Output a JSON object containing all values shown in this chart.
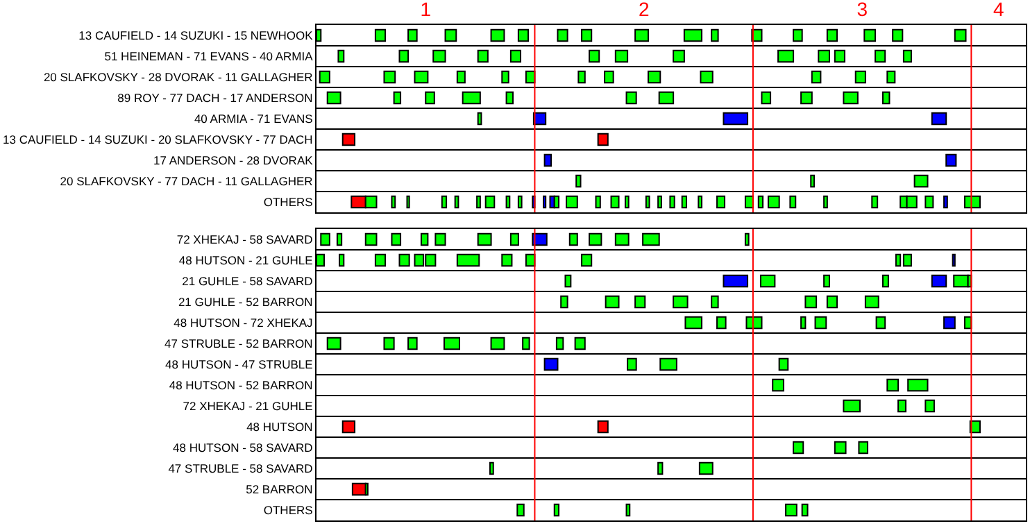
{
  "chart_data": [
    {
      "type": "bar",
      "orientation": "horizontal",
      "xlim": [
        0.5,
        3.75
      ],
      "xticks": [
        1,
        2,
        3,
        {
          "value": 3.625,
          "label": "4"
        }
      ],
      "grid": "y",
      "ref_lines": [
        {
          "axis": "x",
          "value": 1.5,
          "color": "#ff0000"
        },
        {
          "axis": "x",
          "value": 2.5,
          "color": "#ff0000"
        },
        {
          "axis": "x",
          "value": 3.5,
          "color": "#ff0000"
        }
      ],
      "categories": [
        "13 CAUFIELD - 14 SUZUKI - 15 NEWHOOK",
        "51 HEINEMAN - 71 EVANS - 40 ARMIA",
        "20 SLAFKOVSKY - 28 DVORAK - 11 GALLAGHER",
        "89 ROY - 77 DACH - 17 ANDERSON",
        "40 ARMIA - 71 EVANS",
        "13 CAUFIELD - 14 SUZUKI - 20 SLAFKOVSKY - 77 DACH",
        "17 ANDERSON - 28 DVORAK",
        "20 SLAFKOVSKY - 77 DACH - 11 GALLAGHER",
        "OTHERS"
      ],
      "series": [
        {
          "colors": [
            "#00ff00",
            "#00ff00",
            "#00ff00",
            "#00ff00",
            "#00ff00",
            "#ff0000",
            "#0000ff",
            "#00ff00",
            "#ff0000"
          ],
          "base": [
            0.5,
            0.6,
            0.515,
            0.55,
            1.24,
            0.62,
            1.545,
            1.69,
            0.66
          ],
          "values": [
            0.02,
            0.025,
            0.045,
            0.06,
            0.015,
            0.055,
            0.03,
            0.02,
            0.065
          ]
        },
        {
          "colors": [
            "#00ff00",
            "#00ff00",
            "#00ff00",
            "#00ff00",
            "#0000ff",
            "#ff0000",
            "#0000ff",
            "#00ff00",
            "#00ff00"
          ],
          "base": [
            0.77,
            0.88,
            0.81,
            0.855,
            1.495,
            1.79,
            3.385,
            2.765,
            0.725
          ],
          "values": [
            0.045,
            0.04,
            0.05,
            0.03,
            0.055,
            0.045,
            0.045,
            0.015,
            0.05
          ]
        },
        {
          "colors": [
            "#00ff00",
            "#00ff00",
            "#00ff00",
            "#00ff00",
            "#0000ff",
            null,
            null,
            "#00ff00",
            "#00ff00"
          ],
          "base": [
            0.92,
            1.035,
            0.95,
            1.0,
            2.365,
            null,
            null,
            3.24,
            0.845
          ],
          "values": [
            0.04,
            0.055,
            0.06,
            0.04,
            0.11,
            null,
            null,
            0.06,
            0.015
          ]
        },
        {
          "colors": [
            "#00ff00",
            "#00ff00",
            "#00ff00",
            "#00ff00",
            "#0000ff",
            null,
            null,
            null,
            "#00ff00"
          ],
          "base": [
            1.09,
            1.24,
            1.145,
            1.17,
            3.32,
            null,
            null,
            null,
            0.915
          ],
          "values": [
            0.05,
            0.045,
            0.035,
            0.08,
            0.065,
            null,
            null,
            null,
            0.01
          ]
        },
        {
          "color": "#00ff00",
          "base": [
            1.3,
            1.39,
            1.35,
            1.37,
            null,
            null,
            null,
            null,
            1.075
          ],
          "values": [
            0.06,
            0.045,
            0.03,
            0.03,
            null,
            null,
            null,
            null,
            0.02
          ]
        },
        {
          "color": "#00ff00",
          "base": [
            1.425,
            1.75,
            1.46,
            1.92,
            null,
            null,
            null,
            null,
            1.135
          ],
          "values": [
            0.045,
            0.045,
            0.04,
            0.045,
            null,
            null,
            null,
            null,
            0.015
          ]
        },
        {
          "color": "#00ff00",
          "base": [
            1.605,
            1.87,
            1.7,
            2.07,
            null,
            null,
            null,
            null,
            1.235
          ],
          "values": [
            0.045,
            0.055,
            0.03,
            0.065,
            null,
            null,
            null,
            null,
            0.015
          ]
        },
        {
          "color": "#00ff00",
          "base": [
            1.715,
            2.135,
            1.82,
            2.54,
            null,
            null,
            null,
            null,
            1.275
          ],
          "values": [
            0.045,
            0.05,
            0.04,
            0.04,
            null,
            null,
            null,
            null,
            0.04
          ]
        },
        {
          "color": "#00ff00",
          "base": [
            1.96,
            2.615,
            2.02,
            2.72,
            null,
            null,
            null,
            null,
            1.37
          ],
          "values": [
            0.06,
            0.07,
            0.055,
            0.05,
            null,
            null,
            null,
            null,
            0.015
          ]
        },
        {
          "color": "#00ff00",
          "base": [
            2.185,
            2.8,
            2.26,
            2.915,
            null,
            null,
            null,
            null,
            1.425
          ],
          "values": [
            0.08,
            0.05,
            0.055,
            0.065,
            null,
            null,
            null,
            null,
            0.015
          ]
        },
        {
          "colors": [
            "#00ff00",
            "#00ff00",
            "#00ff00",
            "#00ff00",
            null,
            null,
            null,
            null,
            "#0000ff"
          ],
          "base": [
            2.31,
            2.875,
            2.77,
            3.095,
            null,
            null,
            null,
            null,
            1.49
          ],
          "values": [
            0.03,
            0.045,
            0.04,
            0.03,
            null,
            null,
            null,
            null,
            0.01
          ]
        },
        {
          "colors": [
            "#00ff00",
            "#00ff00",
            "#00ff00",
            null,
            null,
            null,
            null,
            null,
            "#0000ff"
          ],
          "base": [
            2.495,
            3.06,
            2.97,
            null,
            null,
            null,
            null,
            null,
            1.54
          ],
          "values": [
            0.045,
            0.045,
            0.045,
            null,
            null,
            null,
            null,
            null,
            0.01
          ]
        },
        {
          "colors": [
            "#00ff00",
            "#00ff00",
            "#00ff00",
            null,
            null,
            null,
            null,
            null,
            "#0000ff"
          ],
          "base": [
            2.685,
            3.19,
            3.115,
            null,
            null,
            null,
            null,
            null,
            1.57
          ],
          "values": [
            0.04,
            0.035,
            0.035,
            null,
            null,
            null,
            null,
            null,
            0.02
          ]
        },
        {
          "color": "#00ff00",
          "base": [
            2.84,
            null,
            null,
            null,
            null,
            null,
            null,
            null,
            1.59
          ],
          "values": [
            0.045,
            null,
            null,
            null,
            null,
            null,
            null,
            null,
            0.02
          ]
        },
        {
          "color": "#00ff00",
          "base": [
            3.01,
            null,
            null,
            null,
            null,
            null,
            null,
            null,
            1.645
          ],
          "values": [
            0.05,
            null,
            null,
            null,
            null,
            null,
            null,
            null,
            0.05
          ]
        },
        {
          "color": "#00ff00",
          "base": [
            3.14,
            null,
            null,
            null,
            null,
            null,
            null,
            null,
            1.78
          ],
          "values": [
            0.045,
            null,
            null,
            null,
            null,
            null,
            null,
            null,
            0.02
          ]
        },
        {
          "color": "#00ff00",
          "base": [
            3.425,
            null,
            null,
            null,
            null,
            null,
            null,
            null,
            1.85
          ],
          "values": [
            0.05,
            null,
            null,
            null,
            null,
            null,
            null,
            null,
            0.035
          ]
        },
        {
          "color": "#00ff00",
          "base": [
            null,
            null,
            null,
            null,
            null,
            null,
            null,
            null,
            1.915
          ],
          "values": [
            null,
            null,
            null,
            null,
            null,
            null,
            null,
            null,
            0.015
          ]
        },
        {
          "color": "#00ff00",
          "base": [
            null,
            null,
            null,
            null,
            null,
            null,
            null,
            null,
            2.01
          ],
          "values": [
            null,
            null,
            null,
            null,
            null,
            null,
            null,
            null,
            0.015
          ]
        },
        {
          "color": "#00ff00",
          "base": [
            null,
            null,
            null,
            null,
            null,
            null,
            null,
            null,
            2.065
          ],
          "values": [
            null,
            null,
            null,
            null,
            null,
            null,
            null,
            null,
            0.015
          ]
        },
        {
          "color": "#00ff00",
          "base": [
            null,
            null,
            null,
            null,
            null,
            null,
            null,
            null,
            2.12
          ],
          "values": [
            null,
            null,
            null,
            null,
            null,
            null,
            null,
            null,
            0.02
          ]
        },
        {
          "color": "#00ff00",
          "base": [
            null,
            null,
            null,
            null,
            null,
            null,
            null,
            null,
            2.175
          ],
          "values": [
            null,
            null,
            null,
            null,
            null,
            null,
            null,
            null,
            0.02
          ]
        },
        {
          "color": "#00ff00",
          "base": [
            null,
            null,
            null,
            null,
            null,
            null,
            null,
            null,
            2.25
          ],
          "values": [
            null,
            null,
            null,
            null,
            null,
            null,
            null,
            null,
            0.015
          ]
        },
        {
          "color": "#00ff00",
          "base": [
            null,
            null,
            null,
            null,
            null,
            null,
            null,
            null,
            2.335
          ],
          "values": [
            null,
            null,
            null,
            null,
            null,
            null,
            null,
            null,
            0.035
          ]
        },
        {
          "color": "#00ff00",
          "base": [
            null,
            null,
            null,
            null,
            null,
            null,
            null,
            null,
            2.465
          ],
          "values": [
            null,
            null,
            null,
            null,
            null,
            null,
            null,
            null,
            0.035
          ]
        },
        {
          "color": "#00ff00",
          "base": [
            null,
            null,
            null,
            null,
            null,
            null,
            null,
            null,
            2.525
          ],
          "values": [
            null,
            null,
            null,
            null,
            null,
            null,
            null,
            null,
            0.02
          ]
        },
        {
          "color": "#00ff00",
          "base": [
            null,
            null,
            null,
            null,
            null,
            null,
            null,
            null,
            2.57
          ],
          "values": [
            null,
            null,
            null,
            null,
            null,
            null,
            null,
            null,
            0.05
          ]
        },
        {
          "color": "#00ff00",
          "base": [
            null,
            null,
            null,
            null,
            null,
            null,
            null,
            null,
            2.67
          ],
          "values": [
            null,
            null,
            null,
            null,
            null,
            null,
            null,
            null,
            0.025
          ]
        },
        {
          "color": "#00ff00",
          "base": [
            null,
            null,
            null,
            null,
            null,
            null,
            null,
            null,
            2.825
          ],
          "values": [
            null,
            null,
            null,
            null,
            null,
            null,
            null,
            null,
            0.015
          ]
        },
        {
          "color": "#00ff00",
          "base": [
            null,
            null,
            null,
            null,
            null,
            null,
            null,
            null,
            3.045
          ],
          "values": [
            null,
            null,
            null,
            null,
            null,
            null,
            null,
            null,
            0.025
          ]
        },
        {
          "color": "#00ff00",
          "base": [
            null,
            null,
            null,
            null,
            null,
            null,
            null,
            null,
            3.175
          ],
          "values": [
            null,
            null,
            null,
            null,
            null,
            null,
            null,
            null,
            0.03
          ]
        },
        {
          "color": "#00ff00",
          "base": [
            null,
            null,
            null,
            null,
            null,
            null,
            null,
            null,
            3.205
          ],
          "values": [
            null,
            null,
            null,
            null,
            null,
            null,
            null,
            null,
            0.045
          ]
        },
        {
          "color": "#00ff00",
          "base": [
            null,
            null,
            null,
            null,
            null,
            null,
            null,
            null,
            3.29
          ],
          "values": [
            null,
            null,
            null,
            null,
            null,
            null,
            null,
            null,
            0.035
          ]
        },
        {
          "color": "#0000ff",
          "base": [
            null,
            null,
            null,
            null,
            null,
            null,
            null,
            null,
            3.375
          ],
          "values": [
            null,
            null,
            null,
            null,
            null,
            null,
            null,
            null,
            0.015
          ]
        },
        {
          "color": "#00ff00",
          "base": [
            null,
            null,
            null,
            null,
            null,
            null,
            null,
            null,
            3.47
          ],
          "values": [
            null,
            null,
            null,
            null,
            null,
            null,
            null,
            null,
            0.07
          ]
        }
      ]
    },
    {
      "type": "bar",
      "orientation": "horizontal",
      "xlim": [
        0.5,
        3.75
      ],
      "xticks": [
        1,
        2,
        3
      ],
      "tick_labels": "y",
      "grid": "y",
      "ref_lines": [
        {
          "axis": "x",
          "value": 1.5,
          "color": "#ff0000"
        },
        {
          "axis": "x",
          "value": 2.5,
          "color": "#ff0000"
        },
        {
          "axis": "x",
          "value": 3.5,
          "color": "#ff0000"
        }
      ],
      "categories": [
        "72 XHEKAJ - 58 SAVARD",
        "48 HUTSON - 21 GUHLE",
        "21 GUHLE - 58 SAVARD",
        "21 GUHLE - 52 BARRON",
        "48 HUTSON - 72 XHEKAJ",
        "47 STRUBLE - 52 BARRON",
        "48 HUTSON - 47 STRUBLE",
        "48 HUTSON - 52 BARRON",
        "72 XHEKAJ - 21 GUHLE",
        "48 HUTSON",
        "48 HUTSON - 58 SAVARD",
        "47 STRUBLE - 58 SAVARD",
        "52 BARRON",
        "OTHERS"
      ],
      "series": [
        {
          "colors": [
            "#00ff00",
            "#00ff00",
            "#00ff00",
            "#00ff00",
            "#00ff00",
            "#00ff00",
            "#0000ff",
            "#00ff00",
            "#00ff00",
            "#ff0000",
            "#00ff00",
            "#00ff00",
            "#ff0000",
            "#00ff00"
          ],
          "base": [
            0.52,
            0.5,
            1.64,
            1.62,
            2.19,
            0.55,
            1.545,
            2.59,
            2.915,
            0.62,
            2.685,
            1.295,
            0.665,
            1.42
          ],
          "values": [
            0.04,
            0.035,
            0.025,
            0.03,
            0.075,
            0.06,
            0.06,
            0.05,
            0.075,
            0.055,
            0.045,
            0.015,
            0.06,
            0.03
          ]
        },
        {
          "colors": [
            "#00ff00",
            "#00ff00",
            "#0000ff",
            "#00ff00",
            "#00ff00",
            "#00ff00",
            "#00ff00",
            "#00ff00",
            "#00ff00",
            "#ff0000",
            "#00ff00",
            "#00ff00",
            "#00ff00",
            "#00ff00"
          ],
          "base": [
            0.595,
            0.605,
            2.365,
            1.825,
            2.335,
            0.81,
            1.925,
            3.115,
            3.165,
            1.79,
            2.875,
            2.065,
            0.725,
            1.59
          ],
          "values": [
            0.02,
            0.02,
            0.11,
            0.06,
            0.04,
            0.045,
            0.04,
            0.05,
            0.035,
            0.045,
            0.05,
            0.02,
            0.01,
            0.02
          ]
        },
        {
          "color": "#00ff00",
          "base": [
            0.725,
            0.77,
            2.535,
            1.96,
            2.47,
            0.92,
            2.075,
            3.21,
            3.29,
            3.495,
            2.985,
            2.255,
            null,
            1.92
          ],
          "values": [
            0.05,
            0.045,
            0.065,
            0.045,
            0.07,
            0.04,
            0.075,
            0.09,
            0.04,
            0.045,
            0.04,
            0.06,
            null,
            0.015
          ]
        },
        {
          "color": "#00ff00",
          "base": [
            0.845,
            0.88,
            2.825,
            2.135,
            2.72,
            1.085,
            2.62,
            null,
            null,
            null,
            null,
            null,
            null,
            2.65
          ],
          "values": [
            0.04,
            0.045,
            0.025,
            0.065,
            0.02,
            0.07,
            0.04,
            null,
            null,
            null,
            null,
            null,
            null,
            0.05
          ]
        },
        {
          "color": "#00ff00",
          "base": [
            0.98,
            0.95,
            3.095,
            2.31,
            2.785,
            1.3,
            null,
            null,
            null,
            null,
            null,
            null,
            null,
            2.725
          ],
          "values": [
            0.03,
            0.04,
            0.025,
            0.03,
            0.05,
            0.06,
            null,
            null,
            null,
            null,
            null,
            null,
            null,
            0.025
          ]
        },
        {
          "colors": [
            "#00ff00",
            "#00ff00",
            "#0000ff",
            "#00ff00",
            "#00ff00",
            "#00ff00",
            null,
            null,
            null,
            null,
            null,
            null,
            null,
            null
          ],
          "base": [
            1.045,
            1.0,
            3.32,
            2.74,
            3.065,
            1.445,
            null,
            null,
            null,
            null,
            null,
            null,
            null,
            null
          ],
          "values": [
            0.045,
            0.045,
            0.065,
            0.05,
            0.04,
            0.03,
            null,
            null,
            null,
            null,
            null,
            null,
            null,
            null
          ]
        },
        {
          "colors": [
            "#00ff00",
            "#00ff00",
            "#00ff00",
            "#00ff00",
            "#0000ff",
            "#00ff00",
            null,
            null,
            null,
            null,
            null,
            null,
            null,
            null
          ],
          "base": [
            1.24,
            1.145,
            3.42,
            2.84,
            3.375,
            1.6,
            null,
            null,
            null,
            null,
            null,
            null,
            null,
            null
          ],
          "values": [
            0.06,
            0.1,
            0.065,
            0.045,
            0.05,
            0.03,
            null,
            null,
            null,
            null,
            null,
            null,
            null,
            null
          ]
        },
        {
          "color": "#00ff00",
          "base": [
            1.39,
            1.35,
            3.485,
            3.015,
            3.47,
            1.685,
            null,
            null,
            null,
            null,
            null,
            null,
            null,
            null
          ],
          "values": [
            0.035,
            0.045,
            0.015,
            0.06,
            0.03,
            0.045,
            null,
            null,
            null,
            null,
            null,
            null,
            null,
            null
          ]
        },
        {
          "colors": [
            "#0000ff",
            "#00ff00",
            null,
            null,
            null,
            null,
            null,
            null,
            null,
            null,
            null,
            null,
            null,
            null
          ],
          "base": [
            1.49,
            1.46,
            null,
            null,
            null,
            null,
            null,
            null,
            null,
            null,
            null,
            null,
            null,
            null
          ],
          "values": [
            0.065,
            0.04,
            null,
            null,
            null,
            null,
            null,
            null,
            null,
            null,
            null,
            null,
            null,
            null
          ]
        },
        {
          "color": "#00ff00",
          "base": [
            1.66,
            1.715,
            null,
            null,
            null,
            null,
            null,
            null,
            null,
            null,
            null,
            null,
            null,
            null
          ],
          "values": [
            0.035,
            0.045,
            null,
            null,
            null,
            null,
            null,
            null,
            null,
            null,
            null,
            null,
            null,
            null
          ]
        },
        {
          "color": "#00ff00",
          "base": [
            1.75,
            3.155,
            null,
            null,
            null,
            null,
            null,
            null,
            null,
            null,
            null,
            null,
            null,
            null
          ],
          "values": [
            0.055,
            0.02,
            null,
            null,
            null,
            null,
            null,
            null,
            null,
            null,
            null,
            null,
            null,
            null
          ]
        },
        {
          "color": "#00ff00",
          "base": [
            1.87,
            3.19,
            null,
            null,
            null,
            null,
            null,
            null,
            null,
            null,
            null,
            null,
            null,
            null
          ],
          "values": [
            0.06,
            0.035,
            null,
            null,
            null,
            null,
            null,
            null,
            null,
            null,
            null,
            null,
            null,
            null
          ]
        },
        {
          "colors": [
            "#00ff00",
            "#0000ff",
            null,
            null,
            null,
            null,
            null,
            null,
            null,
            null,
            null,
            null,
            null,
            null
          ],
          "base": [
            1.995,
            3.415,
            null,
            null,
            null,
            null,
            null,
            null,
            null,
            null,
            null,
            null,
            null,
            null
          ],
          "values": [
            0.075,
            0.01,
            null,
            null,
            null,
            null,
            null,
            null,
            null,
            null,
            null,
            null,
            null,
            null
          ]
        },
        {
          "color": "#00ff00",
          "base": [
            2.465,
            null,
            null,
            null,
            null,
            null,
            null,
            null,
            null,
            null,
            null,
            null,
            null,
            null
          ],
          "values": [
            0.015,
            null,
            null,
            null,
            null,
            null,
            null,
            null,
            null,
            null,
            null,
            null,
            null,
            null
          ]
        }
      ]
    }
  ]
}
